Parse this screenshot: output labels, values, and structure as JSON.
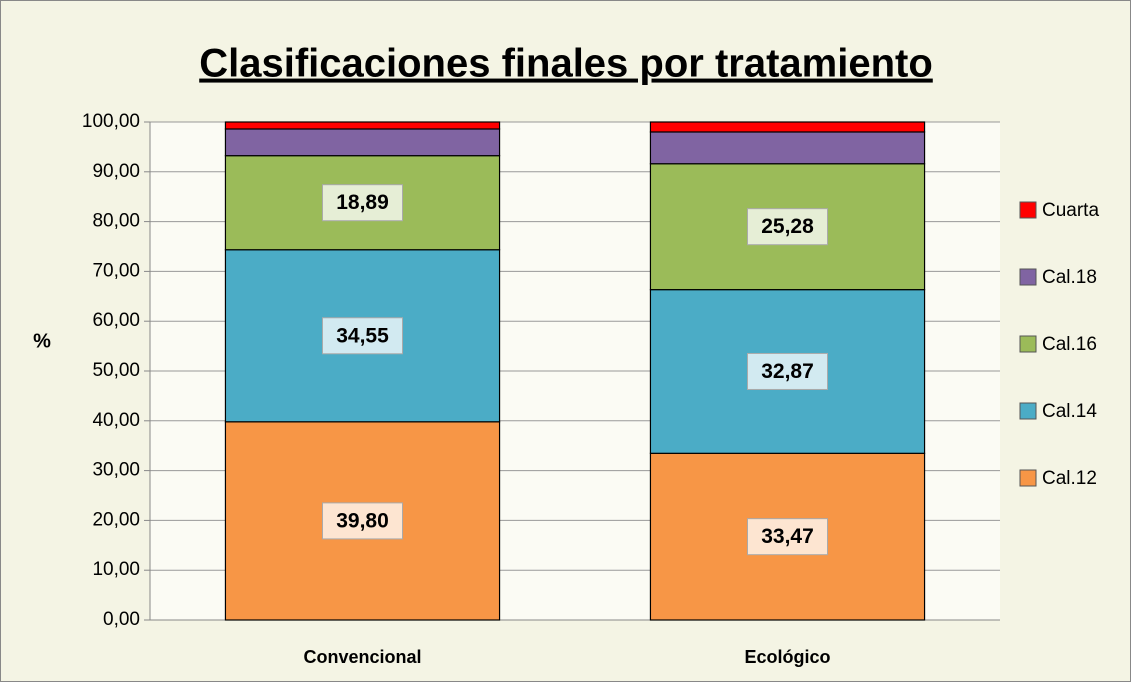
{
  "chart_data": {
    "type": "stacked_bar",
    "title": "Clasificaciones finales por tratamiento",
    "y_label": "%",
    "categories": [
      "Convencional",
      "Ecológico"
    ],
    "series": [
      {
        "name": "Cal.12",
        "color": "#f79646",
        "values": [
          39.8,
          33.47
        ],
        "value_labels": [
          "39,80",
          "33,47"
        ]
      },
      {
        "name": "Cal.14",
        "color": "#4bacc6",
        "values": [
          34.55,
          32.87
        ],
        "value_labels": [
          "34,55",
          "32,87"
        ]
      },
      {
        "name": "Cal.16",
        "color": "#9bbb59",
        "values": [
          18.89,
          25.28
        ],
        "value_labels": [
          "18,89",
          "25,28"
        ]
      },
      {
        "name": "Cal.18",
        "color": "#8064a2",
        "values": [
          5.36,
          6.38
        ],
        "value_labels": [
          null,
          null
        ]
      },
      {
        "name": "Cuarta",
        "color": "#ff0000",
        "values": [
          1.4,
          2.0
        ],
        "value_labels": [
          null,
          null
        ]
      }
    ],
    "ylim": [
      0,
      100
    ],
    "yticks": [
      {
        "value": 0,
        "label": "0,00"
      },
      {
        "value": 10,
        "label": "10,00"
      },
      {
        "value": 20,
        "label": "20,00"
      },
      {
        "value": 30,
        "label": "30,00"
      },
      {
        "value": 40,
        "label": "40,00"
      },
      {
        "value": 50,
        "label": "50,00"
      },
      {
        "value": 60,
        "label": "60,00"
      },
      {
        "value": 70,
        "label": "70,00"
      },
      {
        "value": 80,
        "label": "80,00"
      },
      {
        "value": 90,
        "label": "90,00"
      },
      {
        "value": 100,
        "label": "100,00"
      }
    ],
    "grid": true,
    "legend": "right"
  }
}
